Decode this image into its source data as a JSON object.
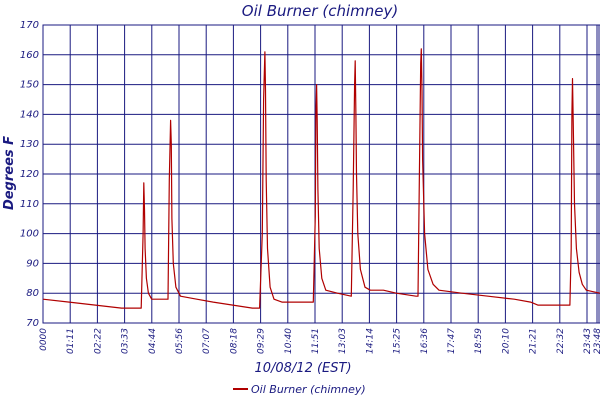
{
  "chart_data": {
    "type": "line",
    "title": "Oil Burner (chimney)",
    "xlabel": "10/08/12 (EST)",
    "ylabel": "Degrees F",
    "ylim": [
      70,
      170
    ],
    "yticks": [
      70,
      80,
      90,
      100,
      110,
      120,
      130,
      140,
      150,
      160,
      170
    ],
    "xtick_labels": [
      "0000",
      "01:11",
      "02:22",
      "03:33",
      "04:44",
      "05:56",
      "07:07",
      "08:18",
      "09:29",
      "10:40",
      "11:51",
      "13:03",
      "14:14",
      "15:25",
      "16:36",
      "17:47",
      "18:59",
      "20:10",
      "21:21",
      "22:32",
      "23:43",
      "23:48"
    ],
    "grid": true,
    "legend_position": "bottom-center",
    "colors": {
      "line": "#b00000",
      "grid": "#1a1a80",
      "axis_text": "#1a1a80"
    },
    "series": [
      {
        "name": "Oil Burner (chimney)",
        "points": [
          [
            0,
            78
          ],
          [
            40,
            77
          ],
          [
            80,
            76
          ],
          [
            120,
            75
          ],
          [
            150,
            75
          ],
          [
            153,
            100
          ],
          [
            154,
            117
          ],
          [
            155,
            108
          ],
          [
            156,
            95
          ],
          [
            158,
            85
          ],
          [
            161,
            80
          ],
          [
            166,
            78
          ],
          [
            186,
            78
          ],
          [
            191,
            78
          ],
          [
            193,
            118
          ],
          [
            195,
            138
          ],
          [
            196,
            130
          ],
          [
            197,
            105
          ],
          [
            199,
            90
          ],
          [
            203,
            82
          ],
          [
            210,
            79
          ],
          [
            235,
            78
          ],
          [
            260,
            77
          ],
          [
            290,
            76
          ],
          [
            320,
            75
          ],
          [
            331,
            75
          ],
          [
            335,
            100
          ],
          [
            337,
            145
          ],
          [
            339,
            161
          ],
          [
            340,
            148
          ],
          [
            341,
            118
          ],
          [
            343,
            95
          ],
          [
            347,
            82
          ],
          [
            353,
            78
          ],
          [
            365,
            77
          ],
          [
            395,
            77
          ],
          [
            413,
            77
          ],
          [
            415,
            96
          ],
          [
            416,
            106
          ],
          [
            417,
            140
          ],
          [
            418,
            150
          ],
          [
            419,
            138
          ],
          [
            420,
            115
          ],
          [
            422,
            95
          ],
          [
            426,
            85
          ],
          [
            432,
            81
          ],
          [
            450,
            80
          ],
          [
            471,
            79
          ],
          [
            474,
            115
          ],
          [
            476,
            150
          ],
          [
            477,
            158
          ],
          [
            478,
            140
          ],
          [
            479,
            120
          ],
          [
            481,
            100
          ],
          [
            485,
            88
          ],
          [
            492,
            82
          ],
          [
            500,
            81
          ],
          [
            520,
            81
          ],
          [
            540,
            80
          ],
          [
            570,
            79
          ],
          [
            573,
            79
          ],
          [
            575,
            120
          ],
          [
            577,
            157
          ],
          [
            578,
            162
          ],
          [
            579,
            148
          ],
          [
            580,
            125
          ],
          [
            583,
            100
          ],
          [
            588,
            88
          ],
          [
            596,
            83
          ],
          [
            605,
            81
          ],
          [
            640,
            80
          ],
          [
            680,
            79
          ],
          [
            720,
            78
          ],
          [
            745,
            77
          ],
          [
            756,
            76
          ],
          [
            770,
            76
          ],
          [
            795,
            76
          ],
          [
            805,
            76
          ],
          [
            807,
            95
          ],
          [
            808,
            140
          ],
          [
            809,
            152
          ],
          [
            810,
            138
          ],
          [
            812,
            110
          ],
          [
            815,
            95
          ],
          [
            819,
            87
          ],
          [
            824,
            83
          ],
          [
            830,
            81
          ],
          [
            851,
            80
          ]
        ]
      }
    ],
    "x_range": [
      0,
      851
    ]
  }
}
